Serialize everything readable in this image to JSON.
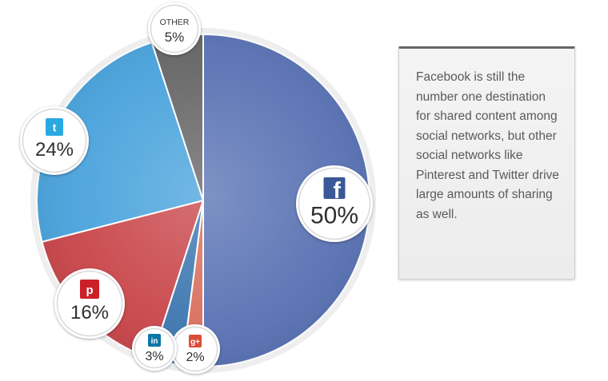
{
  "chart_data": {
    "type": "pie",
    "slices": [
      {
        "label": "Facebook",
        "value": 50,
        "display": "50%",
        "icon": "facebook-icon",
        "color": "#5a73b4",
        "icon_glyph": "f",
        "icon_color": "#3b5998"
      },
      {
        "label": "Google+",
        "value": 2,
        "display": "2%",
        "icon": "google-plus-icon",
        "color": "#d9705f",
        "icon_glyph": "g+",
        "icon_color": "#dd4b39"
      },
      {
        "label": "LinkedIn",
        "value": 3,
        "display": "3%",
        "icon": "linkedin-icon",
        "color": "#3e77b0",
        "icon_glyph": "in",
        "icon_color": "#0e76a8"
      },
      {
        "label": "Pinterest",
        "value": 16,
        "display": "16%",
        "icon": "pinterest-icon",
        "color": "#c9474b",
        "icon_glyph": "p",
        "icon_color": "#cb2027"
      },
      {
        "label": "Twitter",
        "value": 24,
        "display": "24%",
        "icon": "twitter-icon",
        "color": "#4aa3dc",
        "icon_glyph": "t",
        "icon_color": "#2aa9e0"
      },
      {
        "label": "OTHER",
        "value": 5,
        "display": "5%",
        "icon": "",
        "color": "#666666",
        "icon_glyph": "",
        "icon_color": ""
      }
    ]
  },
  "note": {
    "text": "Facebook is still the number one destination for shared content among social networks, but other social networks like Pinterest and Twitter drive large amounts of sharing as well."
  }
}
